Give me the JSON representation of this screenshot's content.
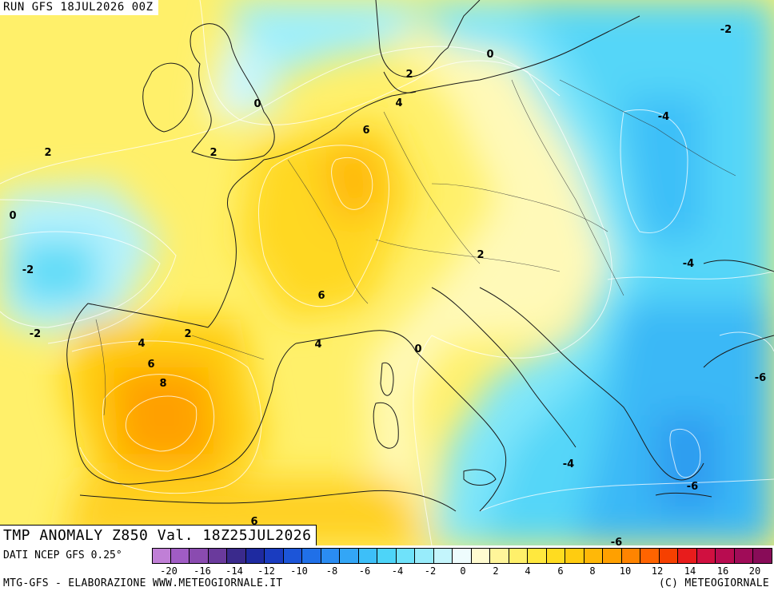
{
  "header": {
    "run_label": "RUN GFS 18JUL2026 00Z"
  },
  "title": {
    "text": "TMP ANOMALY Z850 Val. 18Z25JUL2026"
  },
  "footer": {
    "source": "DATI NCEP GFS 0.25°",
    "credit_left": "MTG-GFS - ELABORAZIONE WWW.METEOGIORNALE.IT",
    "credit_right": "(C) METEOGIORNALE"
  },
  "legend": {
    "colors": [
      "#c07fd6",
      "#a05cc4",
      "#8a4bb0",
      "#6a3a9c",
      "#3a2a8c",
      "#1e2aa0",
      "#1a3cc0",
      "#1c55d8",
      "#2070e8",
      "#2a8cf2",
      "#33a6f6",
      "#3dbff8",
      "#4dd4f8",
      "#6fe2fa",
      "#98ecfb",
      "#c4f5fc",
      "#eefcfd",
      "#fffbd0",
      "#fff59a",
      "#fff06a",
      "#ffe83e",
      "#ffdc20",
      "#ffcc10",
      "#ffb808",
      "#ffa000",
      "#ff8400",
      "#ff6400",
      "#f64000",
      "#e81c1c",
      "#d01040",
      "#b80c50",
      "#a00c58",
      "#880c58"
    ],
    "ticks": [
      "-20",
      "-16",
      "-14",
      "-12",
      "-10",
      "-8",
      "-6",
      "-4",
      "-2",
      "0",
      "2",
      "4",
      "6",
      "8",
      "10",
      "12",
      "14",
      "16",
      "20"
    ]
  },
  "map_labels": [
    {
      "text": "-2",
      "name": "label-minus2-northeast"
    },
    {
      "text": "0",
      "name": "label-0-denmark"
    },
    {
      "text": "2",
      "name": "label-2-denmark"
    },
    {
      "text": "4",
      "name": "label-4-germany-coast"
    },
    {
      "text": "0",
      "name": "label-0-north-sea"
    },
    {
      "text": "6",
      "name": "label-6-benelux"
    },
    {
      "text": "-4",
      "name": "label-minus4-russia"
    },
    {
      "text": "2",
      "name": "label-2-atlantic"
    },
    {
      "text": "2",
      "name": "label-2-britain"
    },
    {
      "text": "0",
      "name": "label-0-atlantic"
    },
    {
      "text": "-2",
      "name": "label-minus2-atlantic"
    },
    {
      "text": "2",
      "name": "label-2-austria"
    },
    {
      "text": "-4",
      "name": "label-minus4-ukraine"
    },
    {
      "text": "6",
      "name": "label-6-france"
    },
    {
      "text": "-2",
      "name": "label-minus2-biscay"
    },
    {
      "text": "2",
      "name": "label-2-pyrenees"
    },
    {
      "text": "4",
      "name": "label-4-spain"
    },
    {
      "text": "4",
      "name": "label-4-gulf-lion"
    },
    {
      "text": "0",
      "name": "label-0-tyrrhenian"
    },
    {
      "text": "6",
      "name": "label-6-spain"
    },
    {
      "text": "8",
      "name": "label-8-spain"
    },
    {
      "text": "-6",
      "name": "label-minus6-turkey"
    },
    {
      "text": "-4",
      "name": "label-minus4-ionian"
    },
    {
      "text": "-6",
      "name": "label-minus6-aegean"
    },
    {
      "text": "6",
      "name": "label-6-africa"
    },
    {
      "text": "-6",
      "name": "label-minus6-south"
    }
  ]
}
